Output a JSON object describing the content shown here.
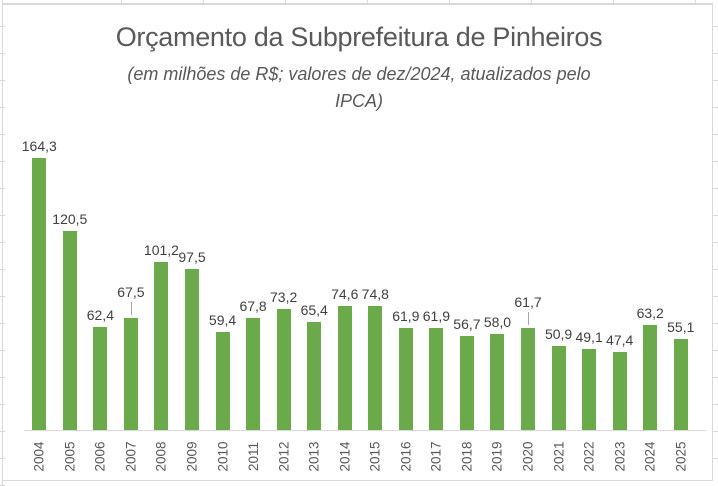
{
  "chart": {
    "title": "Orçamento da Subprefeitura de Pinheiros",
    "subtitle_line1": "(em milhões de R$; valores de dez/2024, atualizados pelo",
    "subtitle_line2": "IPCA)",
    "colors": {
      "bar": "#6AAA4B",
      "title_text": "#595959",
      "data_label_text": "#404040",
      "axis_text": "#595959",
      "axis_line": "#D9D9D9",
      "leader_line": "#A6A6A6",
      "frame": "#D9D9D9"
    }
  },
  "chart_data": {
    "type": "bar",
    "title": "Orçamento da Subprefeitura de Pinheiros",
    "subtitle": "(em milhões de R$; valores de dez/2024, atualizados pelo IPCA)",
    "categories": [
      "2004",
      "2005",
      "2006",
      "2007",
      "2008",
      "2009",
      "2010",
      "2011",
      "2012",
      "2013",
      "2014",
      "2015",
      "2016",
      "2017",
      "2018",
      "2019",
      "2020",
      "2021",
      "2022",
      "2023",
      "2024",
      "2025"
    ],
    "values": [
      164.3,
      120.5,
      62.4,
      67.5,
      101.2,
      97.5,
      59.4,
      67.8,
      73.2,
      65.4,
      74.6,
      74.8,
      61.9,
      61.9,
      56.7,
      58.0,
      61.7,
      50.9,
      49.1,
      47.4,
      63.2,
      55.1
    ],
    "value_labels": [
      "164,3",
      "120,5",
      "62,4",
      "67,5",
      "101,2",
      "97,5",
      "59,4",
      "67,8",
      "73,2",
      "65,4",
      "74,6",
      "74,8",
      "61,9",
      "61,9",
      "56,7",
      "58,0",
      "61,7",
      "50,9",
      "49,1",
      "47,4",
      "63,2",
      "55,1"
    ],
    "leader_line_indexes": [
      3,
      16
    ],
    "xlabel": "",
    "ylabel": "",
    "ylim": [
      0,
      180
    ],
    "grid": false,
    "legend": false,
    "data_labels": true,
    "x_tick_rotation": 90
  }
}
